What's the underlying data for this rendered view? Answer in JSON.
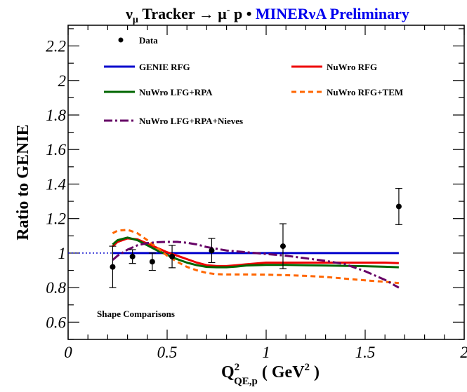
{
  "chart_data": {
    "type": "line",
    "title": {
      "nu": "ν",
      "nu_sub": "μ",
      "middle": " Tracker → μ",
      "mu_sup": "-",
      "proton": " p •",
      "experiment": " MINERνA Preliminary",
      "experiment_color": "#0000ee"
    },
    "xlabel": {
      "main": "Q",
      "sup": "2",
      "sub": "QE,p",
      "unit_open": " ( GeV",
      "unit_sup": "2",
      "unit_close": " )"
    },
    "ylabel": "Ratio to GENIE",
    "xlim": [
      0,
      2
    ],
    "ylim": [
      0.5,
      2.32
    ],
    "x_ticks": [
      {
        "v": 0,
        "label": "0"
      },
      {
        "v": 0.5,
        "label": "0.5"
      },
      {
        "v": 1,
        "label": "1"
      },
      {
        "v": 1.5,
        "label": "1.5"
      },
      {
        "v": 2,
        "label": "2"
      }
    ],
    "y_ticks": [
      {
        "v": 0.6,
        "label": "0.6"
      },
      {
        "v": 0.8,
        "label": "0.8"
      },
      {
        "v": 1.0,
        "label": "1"
      },
      {
        "v": 1.2,
        "label": "1.2"
      },
      {
        "v": 1.4,
        "label": "1.4"
      },
      {
        "v": 1.6,
        "label": "1.6"
      },
      {
        "v": 1.8,
        "label": "1.8"
      },
      {
        "v": 2.0,
        "label": "2"
      },
      {
        "v": 2.2,
        "label": "2.2"
      }
    ],
    "annotation": "Shape Comparisons",
    "data_points": {
      "name": "Data",
      "x": [
        0.225,
        0.325,
        0.425,
        0.525,
        0.725,
        1.085,
        1.67
      ],
      "y": [
        0.92,
        0.98,
        0.95,
        0.98,
        1.015,
        1.04,
        1.27
      ],
      "err": [
        0.12,
        0.04,
        0.05,
        0.065,
        0.07,
        0.13,
        0.105
      ]
    },
    "reference_line": {
      "y": 1.0,
      "x_from": 0,
      "x_to": 0.225,
      "color": "#0000cc",
      "style": "dotted"
    },
    "series": [
      {
        "name": "GENIE RFG",
        "color": "#0000cc",
        "style": "solid",
        "x": [
          0.225,
          1.67
        ],
        "y": [
          1.0,
          1.0
        ]
      },
      {
        "name": "NuWro RFG",
        "color": "#ee0000",
        "style": "solid",
        "x": [
          0.225,
          0.25,
          0.3,
          0.35,
          0.4,
          0.45,
          0.5,
          0.55,
          0.6,
          0.65,
          0.7,
          0.75,
          0.8,
          0.85,
          0.9,
          1.0,
          1.1,
          1.2,
          1.3,
          1.4,
          1.5,
          1.6,
          1.67
        ],
        "y": [
          1.04,
          1.065,
          1.085,
          1.08,
          1.055,
          1.03,
          1.005,
          0.985,
          0.965,
          0.945,
          0.93,
          0.925,
          0.925,
          0.93,
          0.935,
          0.945,
          0.945,
          0.945,
          0.945,
          0.945,
          0.945,
          0.945,
          0.942
        ]
      },
      {
        "name": "NuWro LFG+RPA",
        "color": "#006600",
        "style": "solid",
        "x": [
          0.225,
          0.25,
          0.3,
          0.35,
          0.4,
          0.45,
          0.5,
          0.55,
          0.6,
          0.65,
          0.7,
          0.75,
          0.8,
          0.85,
          0.9,
          1.0,
          1.1,
          1.2,
          1.3,
          1.4,
          1.5,
          1.6,
          1.67
        ],
        "y": [
          1.05,
          1.075,
          1.09,
          1.075,
          1.045,
          1.015,
          0.99,
          0.965,
          0.945,
          0.93,
          0.92,
          0.918,
          0.918,
          0.922,
          0.928,
          0.932,
          0.932,
          0.93,
          0.928,
          0.926,
          0.924,
          0.921,
          0.918
        ]
      },
      {
        "name": "NuWro RFG+TEM",
        "color": "#ff6600",
        "style": "dashed",
        "x": [
          0.225,
          0.25,
          0.3,
          0.35,
          0.4,
          0.45,
          0.5,
          0.55,
          0.6,
          0.65,
          0.7,
          0.75,
          0.8,
          0.85,
          0.9,
          1.0,
          1.1,
          1.2,
          1.3,
          1.4,
          1.5,
          1.6,
          1.67
        ],
        "y": [
          1.115,
          1.13,
          1.135,
          1.115,
          1.075,
          1.03,
          0.985,
          0.95,
          0.92,
          0.9,
          0.885,
          0.878,
          0.876,
          0.876,
          0.876,
          0.875,
          0.872,
          0.868,
          0.862,
          0.852,
          0.842,
          0.834,
          0.826
        ]
      },
      {
        "name": "NuWro LFG+RPA+Nieves",
        "color": "#660066",
        "style": "dashdot",
        "x": [
          0.225,
          0.25,
          0.3,
          0.35,
          0.4,
          0.45,
          0.5,
          0.55,
          0.6,
          0.65,
          0.7,
          0.8,
          0.9,
          1.0,
          1.1,
          1.2,
          1.3,
          1.4,
          1.5,
          1.6,
          1.67
        ],
        "y": [
          0.96,
          0.985,
          1.02,
          1.045,
          1.058,
          1.063,
          1.065,
          1.065,
          1.06,
          1.05,
          1.035,
          1.015,
          1.005,
          0.995,
          0.985,
          0.97,
          0.955,
          0.935,
          0.895,
          0.845,
          0.8
        ]
      }
    ],
    "legend": {
      "placement": "top-left",
      "order": [
        "Data",
        "GENIE RFG",
        "NuWro RFG",
        "NuWro LFG+RPA",
        "NuWro RFG+TEM",
        "NuWro LFG+RPA+Nieves"
      ]
    }
  }
}
